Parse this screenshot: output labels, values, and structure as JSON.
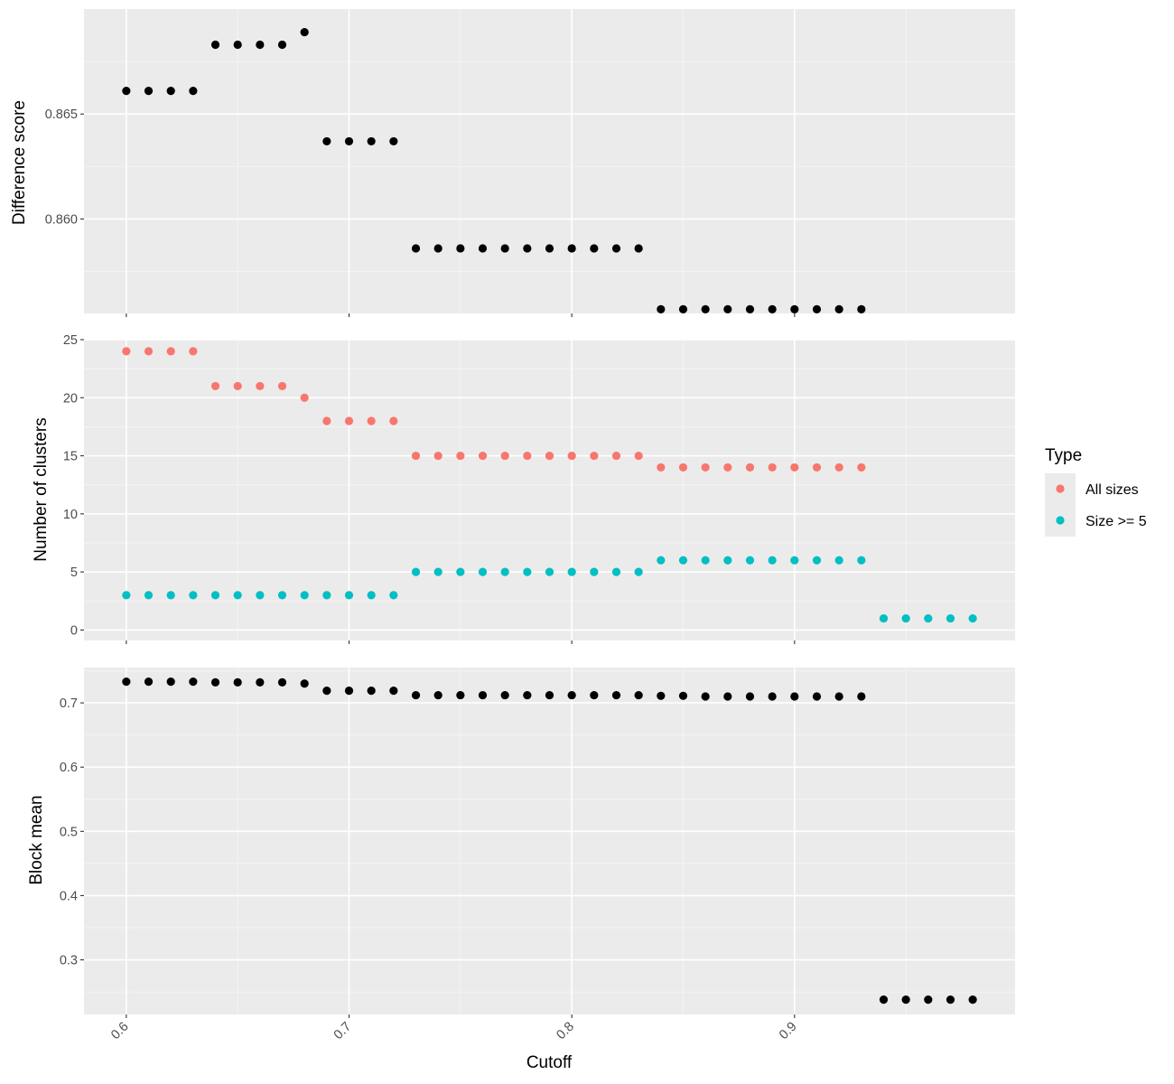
{
  "chart_data": [
    {
      "type": "scatter",
      "ylabel": "Difference score",
      "ylim": [
        0.8555,
        0.87
      ],
      "yticks": [
        0.86,
        0.865
      ],
      "ytick_labels": [
        "0.860",
        "0.865"
      ],
      "grid": true,
      "series": [
        {
          "color": "#000000",
          "x": [
            0.6,
            0.61,
            0.62,
            0.63,
            0.64,
            0.65,
            0.66,
            0.67,
            0.68,
            0.69,
            0.7,
            0.71,
            0.72,
            0.73,
            0.74,
            0.75,
            0.76,
            0.77,
            0.78,
            0.79,
            0.8,
            0.81,
            0.82,
            0.83,
            0.84,
            0.85,
            0.86,
            0.87,
            0.88,
            0.89,
            0.9,
            0.91,
            0.92,
            0.93
          ],
          "y": [
            0.8661,
            0.8661,
            0.8661,
            0.8661,
            0.8683,
            0.8683,
            0.8683,
            0.8683,
            0.8689,
            0.8637,
            0.8637,
            0.8637,
            0.8637,
            0.8586,
            0.8586,
            0.8586,
            0.8586,
            0.8586,
            0.8586,
            0.8586,
            0.8586,
            0.8586,
            0.8586,
            0.8586,
            0.8557,
            0.8557,
            0.8557,
            0.8557,
            0.8557,
            0.8557,
            0.8557,
            0.8557,
            0.8557,
            0.8557
          ]
        }
      ]
    },
    {
      "type": "scatter",
      "ylabel": "Number of clusters",
      "ylim": [
        -0.9,
        25.0
      ],
      "yticks": [
        0,
        5,
        10,
        15,
        20,
        25
      ],
      "ytick_labels": [
        "0",
        "5",
        "10",
        "15",
        "20",
        "25"
      ],
      "grid": true,
      "series": [
        {
          "name": "All sizes",
          "color": "#F8766D",
          "x": [
            0.6,
            0.61,
            0.62,
            0.63,
            0.64,
            0.65,
            0.66,
            0.67,
            0.68,
            0.69,
            0.7,
            0.71,
            0.72,
            0.73,
            0.74,
            0.75,
            0.76,
            0.77,
            0.78,
            0.79,
            0.8,
            0.81,
            0.82,
            0.83,
            0.84,
            0.85,
            0.86,
            0.87,
            0.88,
            0.89,
            0.9,
            0.91,
            0.92,
            0.93
          ],
          "y": [
            24,
            24,
            24,
            24,
            21,
            21,
            21,
            21,
            20,
            18,
            18,
            18,
            18,
            15,
            15,
            15,
            15,
            15,
            15,
            15,
            15,
            15,
            15,
            15,
            14,
            14,
            14,
            14,
            14,
            14,
            14,
            14,
            14,
            14
          ]
        },
        {
          "name": "Size >= 5",
          "color": "#00BFC4",
          "x": [
            0.6,
            0.61,
            0.62,
            0.63,
            0.64,
            0.65,
            0.66,
            0.67,
            0.68,
            0.69,
            0.7,
            0.71,
            0.72,
            0.73,
            0.74,
            0.75,
            0.76,
            0.77,
            0.78,
            0.79,
            0.8,
            0.81,
            0.82,
            0.83,
            0.84,
            0.85,
            0.86,
            0.87,
            0.88,
            0.89,
            0.9,
            0.91,
            0.92,
            0.93,
            0.94,
            0.95,
            0.96,
            0.97,
            0.98
          ],
          "y": [
            3,
            3,
            3,
            3,
            3,
            3,
            3,
            3,
            3,
            3,
            3,
            3,
            3,
            5,
            5,
            5,
            5,
            5,
            5,
            5,
            5,
            5,
            5,
            5,
            6,
            6,
            6,
            6,
            6,
            6,
            6,
            6,
            6,
            6,
            1,
            1,
            1,
            1,
            1
          ]
        }
      ]
    },
    {
      "type": "scatter",
      "ylabel": "Block mean",
      "xlabel": "Cutoff",
      "ylim": [
        0.215,
        0.755
      ],
      "yticks": [
        0.3,
        0.4,
        0.5,
        0.6,
        0.7
      ],
      "ytick_labels": [
        "0.3",
        "0.4",
        "0.5",
        "0.6",
        "0.7"
      ],
      "grid": true,
      "series": [
        {
          "color": "#000000",
          "x": [
            0.6,
            0.61,
            0.62,
            0.63,
            0.64,
            0.65,
            0.66,
            0.67,
            0.68,
            0.69,
            0.7,
            0.71,
            0.72,
            0.73,
            0.74,
            0.75,
            0.76,
            0.77,
            0.78,
            0.79,
            0.8,
            0.81,
            0.82,
            0.83,
            0.84,
            0.85,
            0.86,
            0.87,
            0.88,
            0.89,
            0.9,
            0.91,
            0.92,
            0.93,
            0.94,
            0.95,
            0.96,
            0.97,
            0.98
          ],
          "y": [
            0.733,
            0.733,
            0.733,
            0.733,
            0.732,
            0.732,
            0.732,
            0.732,
            0.73,
            0.719,
            0.719,
            0.719,
            0.719,
            0.712,
            0.712,
            0.712,
            0.712,
            0.712,
            0.712,
            0.712,
            0.712,
            0.712,
            0.712,
            0.712,
            0.711,
            0.711,
            0.71,
            0.71,
            0.71,
            0.71,
            0.71,
            0.71,
            0.71,
            0.71,
            0.238,
            0.238,
            0.238,
            0.238,
            0.238
          ]
        }
      ]
    }
  ],
  "x_axis": {
    "title": "Cutoff",
    "range": [
      0.581,
      0.999
    ],
    "ticks": [
      0.6,
      0.7,
      0.8,
      0.9
    ],
    "tick_labels": [
      "0.6",
      "0.7",
      "0.8",
      "0.9"
    ],
    "tick_rotation_deg": -45
  },
  "legend": {
    "title": "Type",
    "position": "right",
    "items": [
      {
        "label": "All sizes",
        "color": "#F8766D"
      },
      {
        "label": "Size >= 5",
        "color": "#00BFC4"
      }
    ]
  },
  "style": {
    "panel_background": "#EBEBEB",
    "grid_major": "#FFFFFF",
    "grid_minor": "#F5F5F5",
    "tick_color": "#333333",
    "tick_text_color": "#4D4D4D"
  }
}
